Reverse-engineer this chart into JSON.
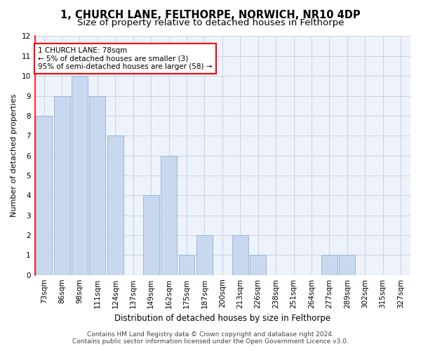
{
  "title1": "1, CHURCH LANE, FELTHORPE, NORWICH, NR10 4DP",
  "title2": "Size of property relative to detached houses in Felthorpe",
  "xlabel": "Distribution of detached houses by size in Felthorpe",
  "ylabel": "Number of detached properties",
  "categories": [
    "73sqm",
    "86sqm",
    "98sqm",
    "111sqm",
    "124sqm",
    "137sqm",
    "149sqm",
    "162sqm",
    "175sqm",
    "187sqm",
    "200sqm",
    "213sqm",
    "226sqm",
    "238sqm",
    "251sqm",
    "264sqm",
    "277sqm",
    "289sqm",
    "302sqm",
    "315sqm",
    "327sqm"
  ],
  "values": [
    8,
    9,
    10,
    9,
    7,
    0,
    4,
    6,
    1,
    2,
    0,
    2,
    1,
    0,
    0,
    0,
    1,
    1,
    0,
    0,
    0
  ],
  "bar_color": "#c8d8ee",
  "bar_edge_color": "#8ab4d8",
  "annotation_text": "1 CHURCH LANE: 78sqm\n← 5% of detached houses are smaller (3)\n95% of semi-detached houses are larger (58) →",
  "annotation_box_color": "white",
  "annotation_box_edge_color": "red",
  "red_line_color": "red",
  "ylim_max": 12,
  "yticks": [
    0,
    1,
    2,
    3,
    4,
    5,
    6,
    7,
    8,
    9,
    10,
    11,
    12
  ],
  "footer1": "Contains HM Land Registry data © Crown copyright and database right 2024.",
  "footer2": "Contains public sector information licensed under the Open Government Licence v3.0.",
  "title1_fontsize": 10.5,
  "title2_fontsize": 9.5,
  "xlabel_fontsize": 8.5,
  "ylabel_fontsize": 8,
  "tick_fontsize": 7.5,
  "footer_fontsize": 6.5,
  "annot_fontsize": 7.5,
  "grid_color": "#c8d4e8",
  "background_color": "#ffffff",
  "plot_background_color": "#eef2fa"
}
